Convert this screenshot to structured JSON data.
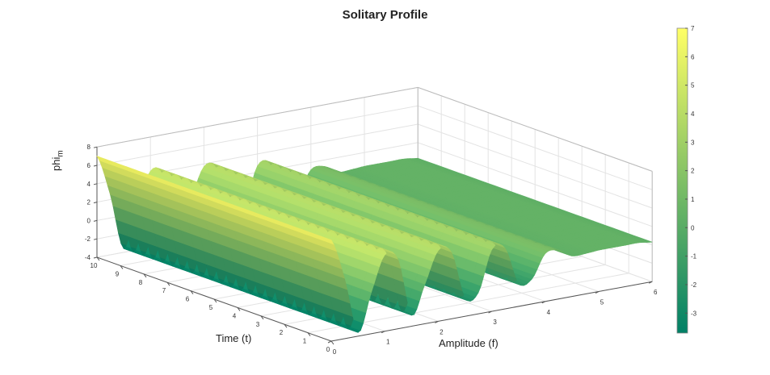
{
  "chart_data": {
    "type": "surface",
    "title": "Solitary Profile",
    "xlabel": "Amplitude (f)",
    "ylabel": "Time (t)",
    "zlabel": "phi",
    "zlabel_sub": "m",
    "xlim": [
      0,
      6
    ],
    "ylim": [
      0,
      10
    ],
    "zlim": [
      -4,
      8
    ],
    "x_ticks": [
      "0",
      "1",
      "2",
      "3",
      "4",
      "5",
      "6"
    ],
    "y_ticks": [
      "0",
      "1",
      "2",
      "3",
      "4",
      "5",
      "6",
      "7",
      "8",
      "9",
      "10"
    ],
    "z_ticks": [
      "-4",
      "-2",
      "0",
      "2",
      "4",
      "6",
      "8"
    ],
    "grid": true,
    "colormap": "summer",
    "colormap_low": "#008066",
    "colormap_high": "#ffff66",
    "colorbar": {
      "range": [
        -3.7,
        7
      ],
      "ticks": [
        "7",
        "6",
        "5",
        "4",
        "3",
        "2",
        "1",
        "0",
        "-1",
        "-2",
        "-3"
      ]
    },
    "profile": {
      "description": "phi_m(f) constant along t",
      "f": [
        0,
        0.25,
        0.5,
        0.75,
        1.0,
        1.25,
        1.5,
        1.75,
        2.0,
        2.25,
        2.5,
        2.75,
        3.0,
        3.25,
        3.5,
        3.75,
        4.0,
        4.25,
        4.5,
        4.75,
        5.0,
        5.25,
        5.5,
        5.75,
        6.0
      ],
      "phi": [
        7.0,
        2.5,
        -3.6,
        0.5,
        4.3,
        3.5,
        -2.8,
        0.3,
        3.7,
        3.2,
        -2.0,
        -1.7,
        2.7,
        2.6,
        -1.5,
        -1.3,
        1.2,
        1.3,
        0.4,
        0.4,
        0.5,
        0.5,
        0.5,
        0.5,
        0.3
      ]
    }
  }
}
